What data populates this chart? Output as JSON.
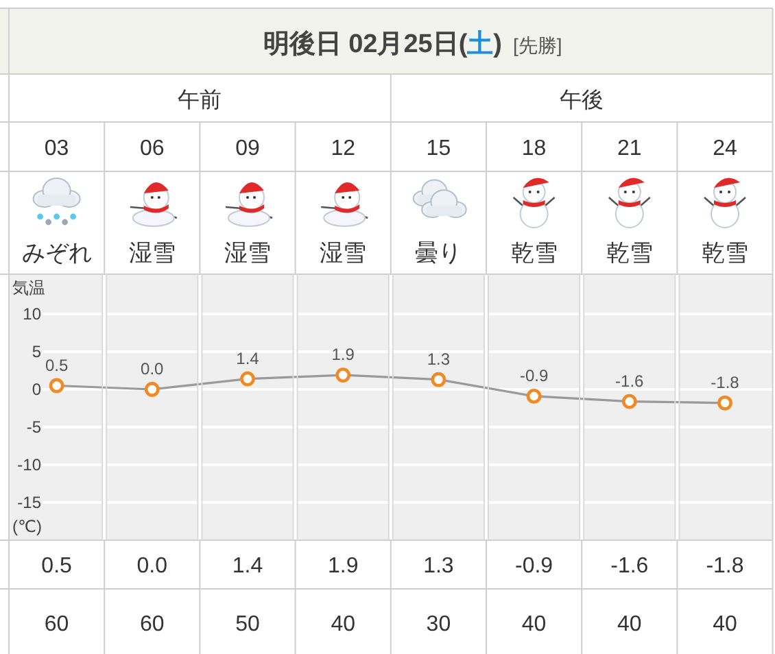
{
  "chart_data": {
    "type": "line",
    "title": "明後日 02月25日(土)",
    "subtitle": "[先勝]",
    "ylabel": "気温",
    "categories": [
      "03",
      "06",
      "09",
      "12",
      "15",
      "18",
      "21",
      "24"
    ],
    "values": [
      0.5,
      0.0,
      1.4,
      1.9,
      1.3,
      -0.9,
      -1.6,
      -1.8
    ],
    "value_labels": [
      "0.5",
      "0.0",
      "1.4",
      "1.9",
      "1.3",
      "-0.9",
      "-1.6",
      "-1.8"
    ],
    "color": "#f28a24",
    "marker": "circle",
    "line_style": "solid",
    "ylim": [
      -20,
      15
    ],
    "yticks": [
      -15,
      -10,
      -5,
      0,
      5,
      10
    ],
    "grid": "y",
    "annotations": [
      "午前",
      "午後",
      "みぞれ",
      "湿雪",
      "湿雪",
      "湿雪",
      "曇り",
      "乾雪",
      "乾雪",
      "乾雪",
      "(℃)",
      "60",
      "60",
      "50",
      "40",
      "30",
      "40",
      "40",
      "40"
    ]
  }
}
